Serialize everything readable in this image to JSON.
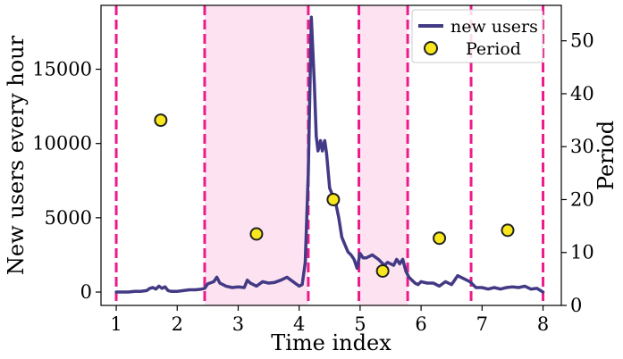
{
  "chart_data": {
    "type": "line",
    "xlabel": "Time index",
    "ylabel_left": "New users every hour",
    "ylabel_right": "Period",
    "xlim": [
      0.75,
      8.3
    ],
    "ylim_left": [
      -900,
      19300
    ],
    "ylim_right": [
      0,
      56.7
    ],
    "xticks": [
      1,
      2,
      3,
      4,
      5,
      6,
      7,
      8
    ],
    "yticks_left": [
      0,
      5000,
      10000,
      15000
    ],
    "yticks_right": [
      0,
      10,
      20,
      30,
      40,
      50
    ],
    "colors": {
      "line": "#433a85",
      "vline": "#ee1a8c",
      "band": "#fde3f1",
      "marker_fill": "#f8e71c",
      "marker_edge": "#222222"
    },
    "vlines": [
      1.0,
      2.45,
      4.15,
      4.98,
      5.78,
      6.82,
      8.0
    ],
    "shaded_bands": [
      [
        2.45,
        4.15
      ],
      [
        4.98,
        5.78
      ]
    ],
    "legend": {
      "position": "upper-right",
      "entries": [
        {
          "label": "new users",
          "kind": "line"
        },
        {
          "label": "Period",
          "kind": "marker"
        }
      ]
    },
    "series": [
      {
        "name": "new users",
        "axis": "left",
        "x": [
          1.0,
          1.1,
          1.2,
          1.3,
          1.4,
          1.5,
          1.55,
          1.6,
          1.65,
          1.7,
          1.75,
          1.8,
          1.85,
          1.9,
          2.0,
          2.1,
          2.2,
          2.3,
          2.4,
          2.45,
          2.5,
          2.6,
          2.65,
          2.7,
          2.75,
          2.8,
          2.9,
          3.0,
          3.1,
          3.15,
          3.2,
          3.25,
          3.3,
          3.4,
          3.5,
          3.6,
          3.7,
          3.8,
          3.9,
          4.0,
          4.05,
          4.1,
          4.15,
          4.2,
          4.25,
          4.28,
          4.31,
          4.35,
          4.38,
          4.42,
          4.45,
          4.5,
          4.55,
          4.6,
          4.65,
          4.7,
          4.75,
          4.8,
          4.85,
          4.9,
          4.95,
          5.0,
          5.05,
          5.1,
          5.2,
          5.3,
          5.35,
          5.4,
          5.45,
          5.5,
          5.55,
          5.6,
          5.65,
          5.7,
          5.75,
          5.8,
          5.85,
          5.9,
          5.95,
          6.0,
          6.1,
          6.2,
          6.3,
          6.4,
          6.5,
          6.6,
          6.7,
          6.8,
          6.9,
          7.0,
          7.1,
          7.2,
          7.3,
          7.4,
          7.5,
          7.6,
          7.7,
          7.8,
          7.9,
          8.0
        ],
        "values": [
          0,
          0,
          0,
          50,
          50,
          100,
          250,
          300,
          200,
          400,
          250,
          350,
          100,
          50,
          50,
          100,
          150,
          150,
          200,
          250,
          550,
          700,
          1000,
          600,
          500,
          400,
          300,
          350,
          300,
          800,
          600,
          500,
          400,
          700,
          600,
          650,
          800,
          1000,
          700,
          400,
          500,
          2000,
          8000,
          18500,
          14000,
          10500,
          9500,
          10200,
          9500,
          10200,
          9300,
          7000,
          6500,
          6000,
          5000,
          3700,
          3200,
          2700,
          2500,
          2200,
          1600,
          2600,
          2300,
          2300,
          2500,
          2200,
          2000,
          1800,
          2000,
          1900,
          1800,
          2200,
          1900,
          2200,
          1400,
          1000,
          800,
          600,
          500,
          700,
          600,
          600,
          400,
          700,
          500,
          1100,
          900,
          700,
          300,
          300,
          200,
          300,
          200,
          300,
          350,
          300,
          400,
          200,
          250,
          0
        ]
      },
      {
        "name": "Period",
        "axis": "right",
        "kind": "scatter",
        "x": [
          1.73,
          3.3,
          4.56,
          5.37,
          6.3,
          7.42
        ],
        "values": [
          35,
          13.5,
          20,
          6.5,
          12.7,
          14.2
        ]
      }
    ]
  }
}
